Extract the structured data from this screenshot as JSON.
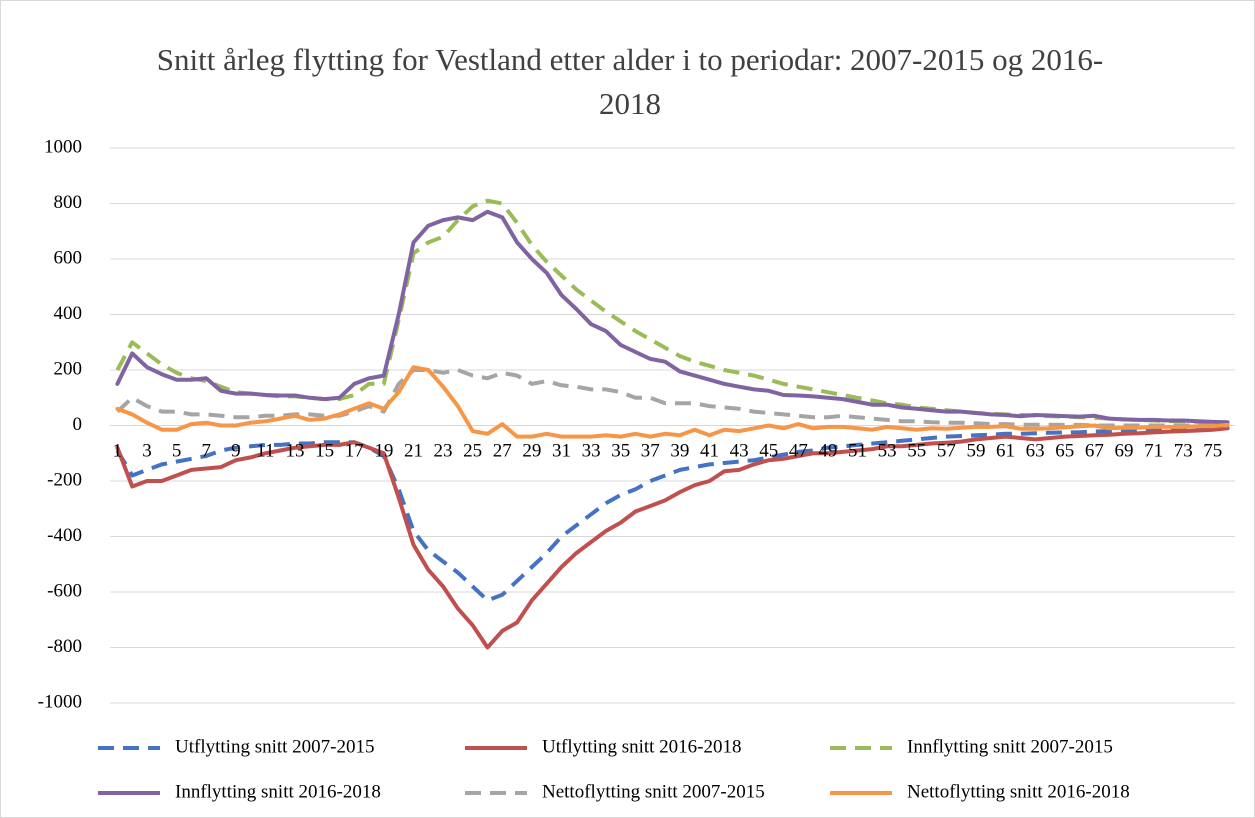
{
  "chart_data": {
    "type": "line",
    "title": "Snitt årleg flytting for Vestland etter alder i to periodar: 2007-2015 og 2016-2018",
    "categories": [
      1,
      null,
      3,
      null,
      5,
      null,
      7,
      null,
      9,
      null,
      11,
      null,
      13,
      null,
      15,
      null,
      17,
      null,
      19,
      null,
      21,
      null,
      23,
      null,
      25,
      null,
      27,
      null,
      29,
      null,
      31,
      null,
      33,
      null,
      35,
      null,
      37,
      null,
      39,
      null,
      41,
      null,
      43,
      null,
      45,
      null,
      47,
      null,
      49,
      null,
      51,
      null,
      53,
      null,
      55,
      null,
      57,
      null,
      59,
      null,
      61,
      null,
      63,
      null,
      65,
      null,
      67,
      null,
      69,
      null,
      71,
      null,
      73,
      null,
      75,
      null
    ],
    "ylim": [
      -1000,
      1000
    ],
    "yticks": [
      1000,
      800,
      600,
      400,
      200,
      0,
      -200,
      -400,
      -600,
      -800,
      -1000
    ],
    "negative_tick_color": "#ff0000",
    "grid": true,
    "legend": "bottom",
    "series": [
      {
        "name": "Utflytting snitt 2007-2015",
        "color": "#4472c4",
        "dashed": true,
        "values": [
          -90,
          -180,
          -160,
          -140,
          -130,
          -120,
          -110,
          -90,
          -80,
          -75,
          -70,
          -70,
          -65,
          -65,
          -60,
          -60,
          -60,
          -80,
          -110,
          -230,
          -380,
          -450,
          -490,
          -530,
          -580,
          -630,
          -610,
          -560,
          -510,
          -460,
          -400,
          -360,
          -320,
          -280,
          -250,
          -230,
          -200,
          -180,
          -160,
          -150,
          -140,
          -135,
          -130,
          -125,
          -115,
          -105,
          -95,
          -90,
          -80,
          -75,
          -70,
          -65,
          -60,
          -55,
          -50,
          -45,
          -40,
          -38,
          -35,
          -33,
          -30,
          -30,
          -28,
          -26,
          -25,
          -24,
          -22,
          -20,
          -18,
          -16,
          -14,
          -12,
          -10,
          -10,
          -8,
          -8
        ]
      },
      {
        "name": "Utflytting snitt 2016-2018",
        "color": "#c0504d",
        "dashed": false,
        "values": [
          -80,
          -220,
          -200,
          -200,
          -180,
          -160,
          -155,
          -150,
          -125,
          -115,
          -100,
          -90,
          -80,
          -75,
          -70,
          -70,
          -60,
          -80,
          -100,
          -260,
          -430,
          -520,
          -580,
          -660,
          -720,
          -800,
          -740,
          -710,
          -630,
          -570,
          -510,
          -460,
          -420,
          -380,
          -350,
          -310,
          -290,
          -270,
          -240,
          -215,
          -200,
          -165,
          -160,
          -140,
          -125,
          -120,
          -110,
          -100,
          -100,
          -95,
          -90,
          -85,
          -75,
          -75,
          -70,
          -65,
          -62,
          -58,
          -50,
          -45,
          -40,
          -45,
          -50,
          -45,
          -40,
          -38,
          -35,
          -33,
          -30,
          -28,
          -25,
          -22,
          -20,
          -18,
          -15,
          -10
        ]
      },
      {
        "name": "Innflytting snitt 2007-2015",
        "color": "#9bbb59",
        "dashed": true,
        "values": [
          200,
          300,
          260,
          220,
          190,
          170,
          160,
          140,
          120,
          115,
          110,
          105,
          105,
          100,
          95,
          95,
          110,
          150,
          150,
          380,
          620,
          660,
          680,
          740,
          790,
          810,
          800,
          730,
          650,
          590,
          540,
          490,
          450,
          410,
          375,
          340,
          310,
          280,
          250,
          230,
          215,
          200,
          190,
          180,
          165,
          150,
          140,
          130,
          120,
          110,
          100,
          90,
          80,
          75,
          65,
          60,
          55,
          50,
          45,
          42,
          40,
          38,
          36,
          34,
          32,
          30,
          28,
          25,
          22,
          20,
          18,
          16,
          15,
          13,
          12,
          10
        ]
      },
      {
        "name": "Innflytting snitt 2016-2018",
        "color": "#8064a2",
        "dashed": false,
        "values": [
          150,
          260,
          210,
          185,
          165,
          165,
          170,
          125,
          115,
          115,
          110,
          108,
          108,
          100,
          95,
          100,
          150,
          170,
          180,
          400,
          660,
          720,
          740,
          750,
          740,
          770,
          750,
          660,
          600,
          550,
          470,
          420,
          365,
          340,
          290,
          265,
          240,
          230,
          195,
          180,
          165,
          150,
          140,
          130,
          125,
          110,
          108,
          105,
          100,
          95,
          85,
          75,
          75,
          65,
          60,
          55,
          50,
          50,
          45,
          40,
          38,
          33,
          38,
          36,
          34,
          32,
          35,
          25,
          22,
          20,
          20,
          18,
          18,
          15,
          13,
          12
        ]
      },
      {
        "name": "Nettoflytting snitt 2007-2015",
        "color": "#a5a5a5",
        "dashed": true,
        "values": [
          50,
          100,
          70,
          50,
          50,
          40,
          40,
          35,
          30,
          30,
          35,
          35,
          40,
          40,
          35,
          35,
          50,
          70,
          50,
          150,
          200,
          200,
          190,
          200,
          180,
          170,
          190,
          180,
          150,
          160,
          145,
          140,
          130,
          130,
          120,
          100,
          100,
          80,
          80,
          80,
          70,
          65,
          60,
          50,
          45,
          40,
          35,
          30,
          30,
          35,
          30,
          25,
          20,
          15,
          15,
          12,
          10,
          10,
          8,
          5,
          5,
          3,
          3,
          3,
          2,
          2,
          0,
          0,
          0,
          0,
          0,
          0,
          0,
          0,
          0,
          0
        ]
      },
      {
        "name": "Nettoflytting snitt 2016-2018",
        "color": "#f79646",
        "dashed": false,
        "values": [
          60,
          40,
          10,
          -15,
          -15,
          5,
          10,
          0,
          0,
          10,
          15,
          25,
          35,
          20,
          25,
          40,
          60,
          80,
          60,
          120,
          210,
          200,
          140,
          70,
          -20,
          -30,
          5,
          -40,
          -40,
          -30,
          -40,
          -40,
          -40,
          -35,
          -40,
          -30,
          -40,
          -30,
          -35,
          -15,
          -35,
          -15,
          -20,
          -10,
          0,
          -10,
          5,
          -10,
          -5,
          -5,
          -10,
          -15,
          -5,
          -10,
          -15,
          -10,
          -12,
          -8,
          -5,
          -5,
          -2,
          -12,
          -12,
          -10,
          -6,
          -3,
          0,
          -10,
          -8,
          -8,
          -5,
          -5,
          -5,
          -3,
          -2,
          2
        ]
      }
    ]
  }
}
